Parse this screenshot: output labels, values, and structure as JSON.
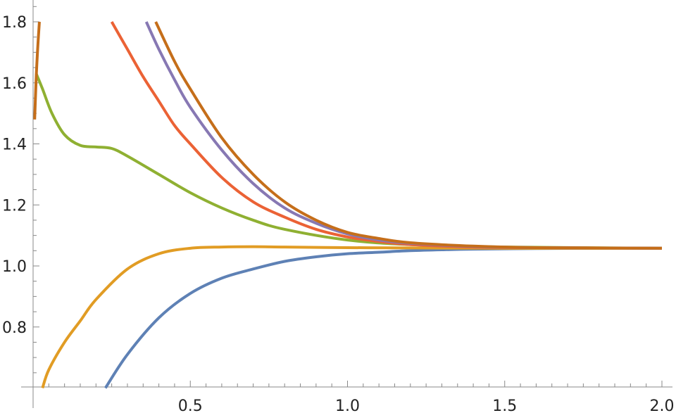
{
  "chart_data": {
    "type": "line",
    "title": "",
    "xlabel": "",
    "ylabel": "",
    "xlim": [
      0,
      2.0
    ],
    "ylim": [
      0.6,
      1.85
    ],
    "grid": false,
    "legend": "none",
    "x_ticks": [
      {
        "value": 0.5,
        "label": "0.5"
      },
      {
        "value": 1.0,
        "label": "1.0"
      },
      {
        "value": 1.5,
        "label": "1.5"
      },
      {
        "value": 2.0,
        "label": "2.0"
      }
    ],
    "y_ticks": [
      {
        "value": 0.8,
        "label": "0.8"
      },
      {
        "value": 1.0,
        "label": "1.0"
      },
      {
        "value": 1.2,
        "label": "1.2"
      },
      {
        "value": 1.4,
        "label": "1.4"
      },
      {
        "value": 1.6,
        "label": "1.6"
      },
      {
        "value": 1.8,
        "label": "1.8"
      }
    ],
    "series": [
      {
        "color": "#5e81b5",
        "points": [
          [
            0.23,
            0.6
          ],
          [
            0.3,
            0.71
          ],
          [
            0.4,
            0.83
          ],
          [
            0.5,
            0.91
          ],
          [
            0.6,
            0.96
          ],
          [
            0.7,
            0.99
          ],
          [
            0.8,
            1.015
          ],
          [
            0.9,
            1.03
          ],
          [
            1.0,
            1.04
          ],
          [
            1.1,
            1.045
          ],
          [
            1.2,
            1.05
          ],
          [
            1.3,
            1.053
          ],
          [
            1.4,
            1.055
          ],
          [
            1.6,
            1.057
          ],
          [
            1.8,
            1.058
          ],
          [
            2.0,
            1.058
          ]
        ]
      },
      {
        "color": "#e19c24",
        "points": [
          [
            0.03,
            0.6
          ],
          [
            0.05,
            0.66
          ],
          [
            0.1,
            0.75
          ],
          [
            0.15,
            0.82
          ],
          [
            0.2,
            0.89
          ],
          [
            0.3,
            0.99
          ],
          [
            0.4,
            1.04
          ],
          [
            0.5,
            1.058
          ],
          [
            0.6,
            1.062
          ],
          [
            0.7,
            1.063
          ],
          [
            0.8,
            1.062
          ],
          [
            1.0,
            1.06
          ],
          [
            1.2,
            1.059
          ],
          [
            1.5,
            1.058
          ],
          [
            2.0,
            1.058
          ]
        ]
      },
      {
        "color": "#8fb032",
        "points": [
          [
            0.01,
            1.63
          ],
          [
            0.03,
            1.58
          ],
          [
            0.06,
            1.5
          ],
          [
            0.1,
            1.43
          ],
          [
            0.15,
            1.395
          ],
          [
            0.2,
            1.39
          ],
          [
            0.25,
            1.385
          ],
          [
            0.3,
            1.36
          ],
          [
            0.4,
            1.3
          ],
          [
            0.5,
            1.24
          ],
          [
            0.6,
            1.19
          ],
          [
            0.7,
            1.15
          ],
          [
            0.8,
            1.12
          ],
          [
            1.0,
            1.085
          ],
          [
            1.2,
            1.07
          ],
          [
            1.5,
            1.062
          ],
          [
            2.0,
            1.058
          ]
        ]
      },
      {
        "color": "#eb6235",
        "points": [
          [
            0.25,
            1.8
          ],
          [
            0.3,
            1.71
          ],
          [
            0.35,
            1.62
          ],
          [
            0.4,
            1.54
          ],
          [
            0.45,
            1.46
          ],
          [
            0.5,
            1.4
          ],
          [
            0.6,
            1.29
          ],
          [
            0.7,
            1.21
          ],
          [
            0.8,
            1.16
          ],
          [
            0.9,
            1.12
          ],
          [
            1.0,
            1.095
          ],
          [
            1.1,
            1.08
          ],
          [
            1.2,
            1.07
          ],
          [
            1.4,
            1.062
          ],
          [
            1.6,
            1.06
          ],
          [
            2.0,
            1.058
          ]
        ]
      },
      {
        "color": "#8778b3",
        "points": [
          [
            0.36,
            1.8
          ],
          [
            0.4,
            1.71
          ],
          [
            0.45,
            1.61
          ],
          [
            0.5,
            1.52
          ],
          [
            0.6,
            1.38
          ],
          [
            0.7,
            1.27
          ],
          [
            0.8,
            1.19
          ],
          [
            0.9,
            1.14
          ],
          [
            1.0,
            1.105
          ],
          [
            1.1,
            1.085
          ],
          [
            1.2,
            1.074
          ],
          [
            1.4,
            1.064
          ],
          [
            1.6,
            1.06
          ],
          [
            2.0,
            1.058
          ]
        ]
      },
      {
        "color": "#c56e1a",
        "points": [
          [
            0.39,
            1.8
          ],
          [
            0.45,
            1.67
          ],
          [
            0.5,
            1.58
          ],
          [
            0.6,
            1.42
          ],
          [
            0.7,
            1.3
          ],
          [
            0.8,
            1.21
          ],
          [
            0.9,
            1.15
          ],
          [
            1.0,
            1.11
          ],
          [
            1.1,
            1.09
          ],
          [
            1.2,
            1.076
          ],
          [
            1.4,
            1.065
          ],
          [
            1.6,
            1.06
          ],
          [
            2.0,
            1.058
          ]
        ]
      },
      {
        "color": "#c56e1a",
        "points": [
          [
            0.005,
            1.48
          ],
          [
            0.01,
            1.62
          ],
          [
            0.015,
            1.72
          ],
          [
            0.02,
            1.8
          ]
        ]
      }
    ]
  }
}
